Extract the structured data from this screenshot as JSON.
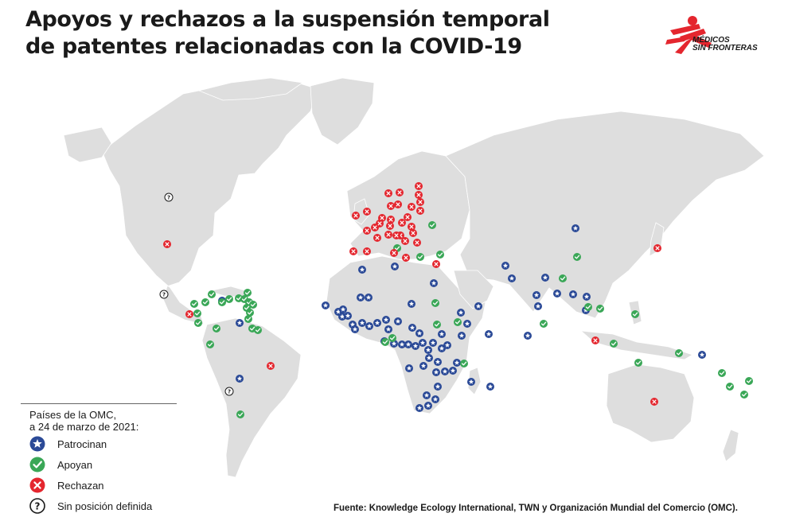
{
  "title": {
    "line1": "Apoyos y rechazos a la suspensión temporal",
    "line2": "de patentes relacionadas con la COVID-19"
  },
  "logo": {
    "line1": "MÉDICOS",
    "line2": "SIN FRONTERAS",
    "color": "#e4262e"
  },
  "legend": {
    "title_line1": "Países de la OMC,",
    "title_line2": "a 24 de marzo de 2021:",
    "items": [
      {
        "key": "sponsor",
        "label": "Patrocinan",
        "icon": "star-icon",
        "color": "#2b4a97"
      },
      {
        "key": "support",
        "label": "Apoyan",
        "icon": "check-icon",
        "color": "#3aa757"
      },
      {
        "key": "reject",
        "label": "Rechazan",
        "icon": "cross-icon",
        "color": "#e4262e"
      },
      {
        "key": "undefined",
        "label": "Sin posición definida",
        "icon": "question-icon",
        "color": "#ffffff"
      }
    ]
  },
  "colors": {
    "land": "#dedede",
    "border": "#ffffff",
    "ocean": "#ffffff"
  },
  "source": "Fuente: Knowledge Ecology International, TWN y Organización Mundial del Comercio (OMC).",
  "markers": {
    "sponsor": [
      [
        723,
        287
      ],
      [
        635,
        334
      ],
      [
        643,
        350
      ],
      [
        685,
        349
      ],
      [
        720,
        370
      ],
      [
        737,
        373
      ],
      [
        700,
        369
      ],
      [
        736,
        390
      ],
      [
        674,
        371
      ],
      [
        676,
        385
      ],
      [
        614,
        420
      ],
      [
        663,
        422
      ],
      [
        882,
        446
      ],
      [
        517,
        382
      ],
      [
        463,
        374
      ],
      [
        545,
        356
      ],
      [
        496,
        335
      ],
      [
        455,
        339
      ],
      [
        409,
        384
      ],
      [
        425,
        392
      ],
      [
        431,
        389
      ],
      [
        430,
        398
      ],
      [
        437,
        397
      ],
      [
        443,
        408
      ],
      [
        446,
        414
      ],
      [
        455,
        406
      ],
      [
        464,
        410
      ],
      [
        474,
        406
      ],
      [
        485,
        402
      ],
      [
        488,
        414
      ],
      [
        500,
        404
      ],
      [
        518,
        412
      ],
      [
        527,
        419
      ],
      [
        531,
        431
      ],
      [
        544,
        431
      ],
      [
        555,
        438
      ],
      [
        562,
        434
      ],
      [
        555,
        420
      ],
      [
        538,
        440
      ],
      [
        539,
        450
      ],
      [
        550,
        455
      ],
      [
        522,
        435
      ],
      [
        513,
        433
      ],
      [
        505,
        433
      ],
      [
        495,
        432
      ],
      [
        483,
        429
      ],
      [
        532,
        460
      ],
      [
        514,
        463
      ],
      [
        548,
        468
      ],
      [
        559,
        467
      ],
      [
        569,
        466
      ],
      [
        574,
        456
      ],
      [
        579,
        393
      ],
      [
        587,
        407
      ],
      [
        580,
        422
      ],
      [
        601,
        385
      ],
      [
        550,
        486
      ],
      [
        536,
        497
      ],
      [
        547,
        502
      ],
      [
        538,
        510
      ],
      [
        527,
        513
      ],
      [
        592,
        480
      ],
      [
        616,
        486
      ],
      [
        301,
        476
      ],
      [
        279,
        378
      ],
      [
        301,
        406
      ],
      [
        453,
        374
      ]
    ],
    "support": [
      [
        725,
        323
      ],
      [
        707,
        350
      ],
      [
        739,
        386
      ],
      [
        754,
        388
      ],
      [
        798,
        395
      ],
      [
        771,
        432
      ],
      [
        802,
        456
      ],
      [
        853,
        444
      ],
      [
        907,
        469
      ],
      [
        917,
        486
      ],
      [
        935,
        496
      ],
      [
        941,
        479
      ],
      [
        683,
        407
      ],
      [
        575,
        405
      ],
      [
        549,
        408
      ],
      [
        547,
        381
      ],
      [
        493,
        425
      ],
      [
        484,
        430
      ],
      [
        543,
        283
      ],
      [
        499,
        312
      ],
      [
        553,
        320
      ],
      [
        528,
        323
      ],
      [
        244,
        382
      ],
      [
        248,
        394
      ],
      [
        249,
        406
      ],
      [
        258,
        380
      ],
      [
        266,
        370
      ],
      [
        279,
        380
      ],
      [
        288,
        376
      ],
      [
        300,
        375
      ],
      [
        311,
        368
      ],
      [
        307,
        376
      ],
      [
        313,
        380
      ],
      [
        310,
        387
      ],
      [
        314,
        393
      ],
      [
        318,
        383
      ],
      [
        312,
        401
      ],
      [
        317,
        413
      ],
      [
        324,
        415
      ],
      [
        272,
        413
      ],
      [
        264,
        433
      ],
      [
        302,
        521
      ],
      [
        583,
        457
      ]
    ],
    "reject": [
      [
        488,
        243
      ],
      [
        502,
        242
      ],
      [
        526,
        234
      ],
      [
        526,
        245
      ],
      [
        528,
        254
      ],
      [
        528,
        265
      ],
      [
        517,
        260
      ],
      [
        500,
        257
      ],
      [
        491,
        259
      ],
      [
        480,
        274
      ],
      [
        491,
        276
      ],
      [
        512,
        273
      ],
      [
        447,
        271
      ],
      [
        461,
        266
      ],
      [
        477,
        281
      ],
      [
        490,
        284
      ],
      [
        505,
        280
      ],
      [
        517,
        285
      ],
      [
        471,
        286
      ],
      [
        488,
        295
      ],
      [
        503,
        296
      ],
      [
        519,
        293
      ],
      [
        509,
        303
      ],
      [
        498,
        296
      ],
      [
        524,
        305
      ],
      [
        461,
        290
      ],
      [
        474,
        299
      ],
      [
        444,
        316
      ],
      [
        461,
        316
      ],
      [
        495,
        318
      ],
      [
        510,
        324
      ],
      [
        548,
        332
      ],
      [
        210,
        307
      ],
      [
        238,
        395
      ],
      [
        340,
        460
      ],
      [
        748,
        428
      ],
      [
        826,
        312
      ],
      [
        822,
        505
      ]
    ],
    "undefined": [
      [
        212,
        248
      ],
      [
        206,
        370
      ],
      [
        288,
        492
      ]
    ]
  }
}
